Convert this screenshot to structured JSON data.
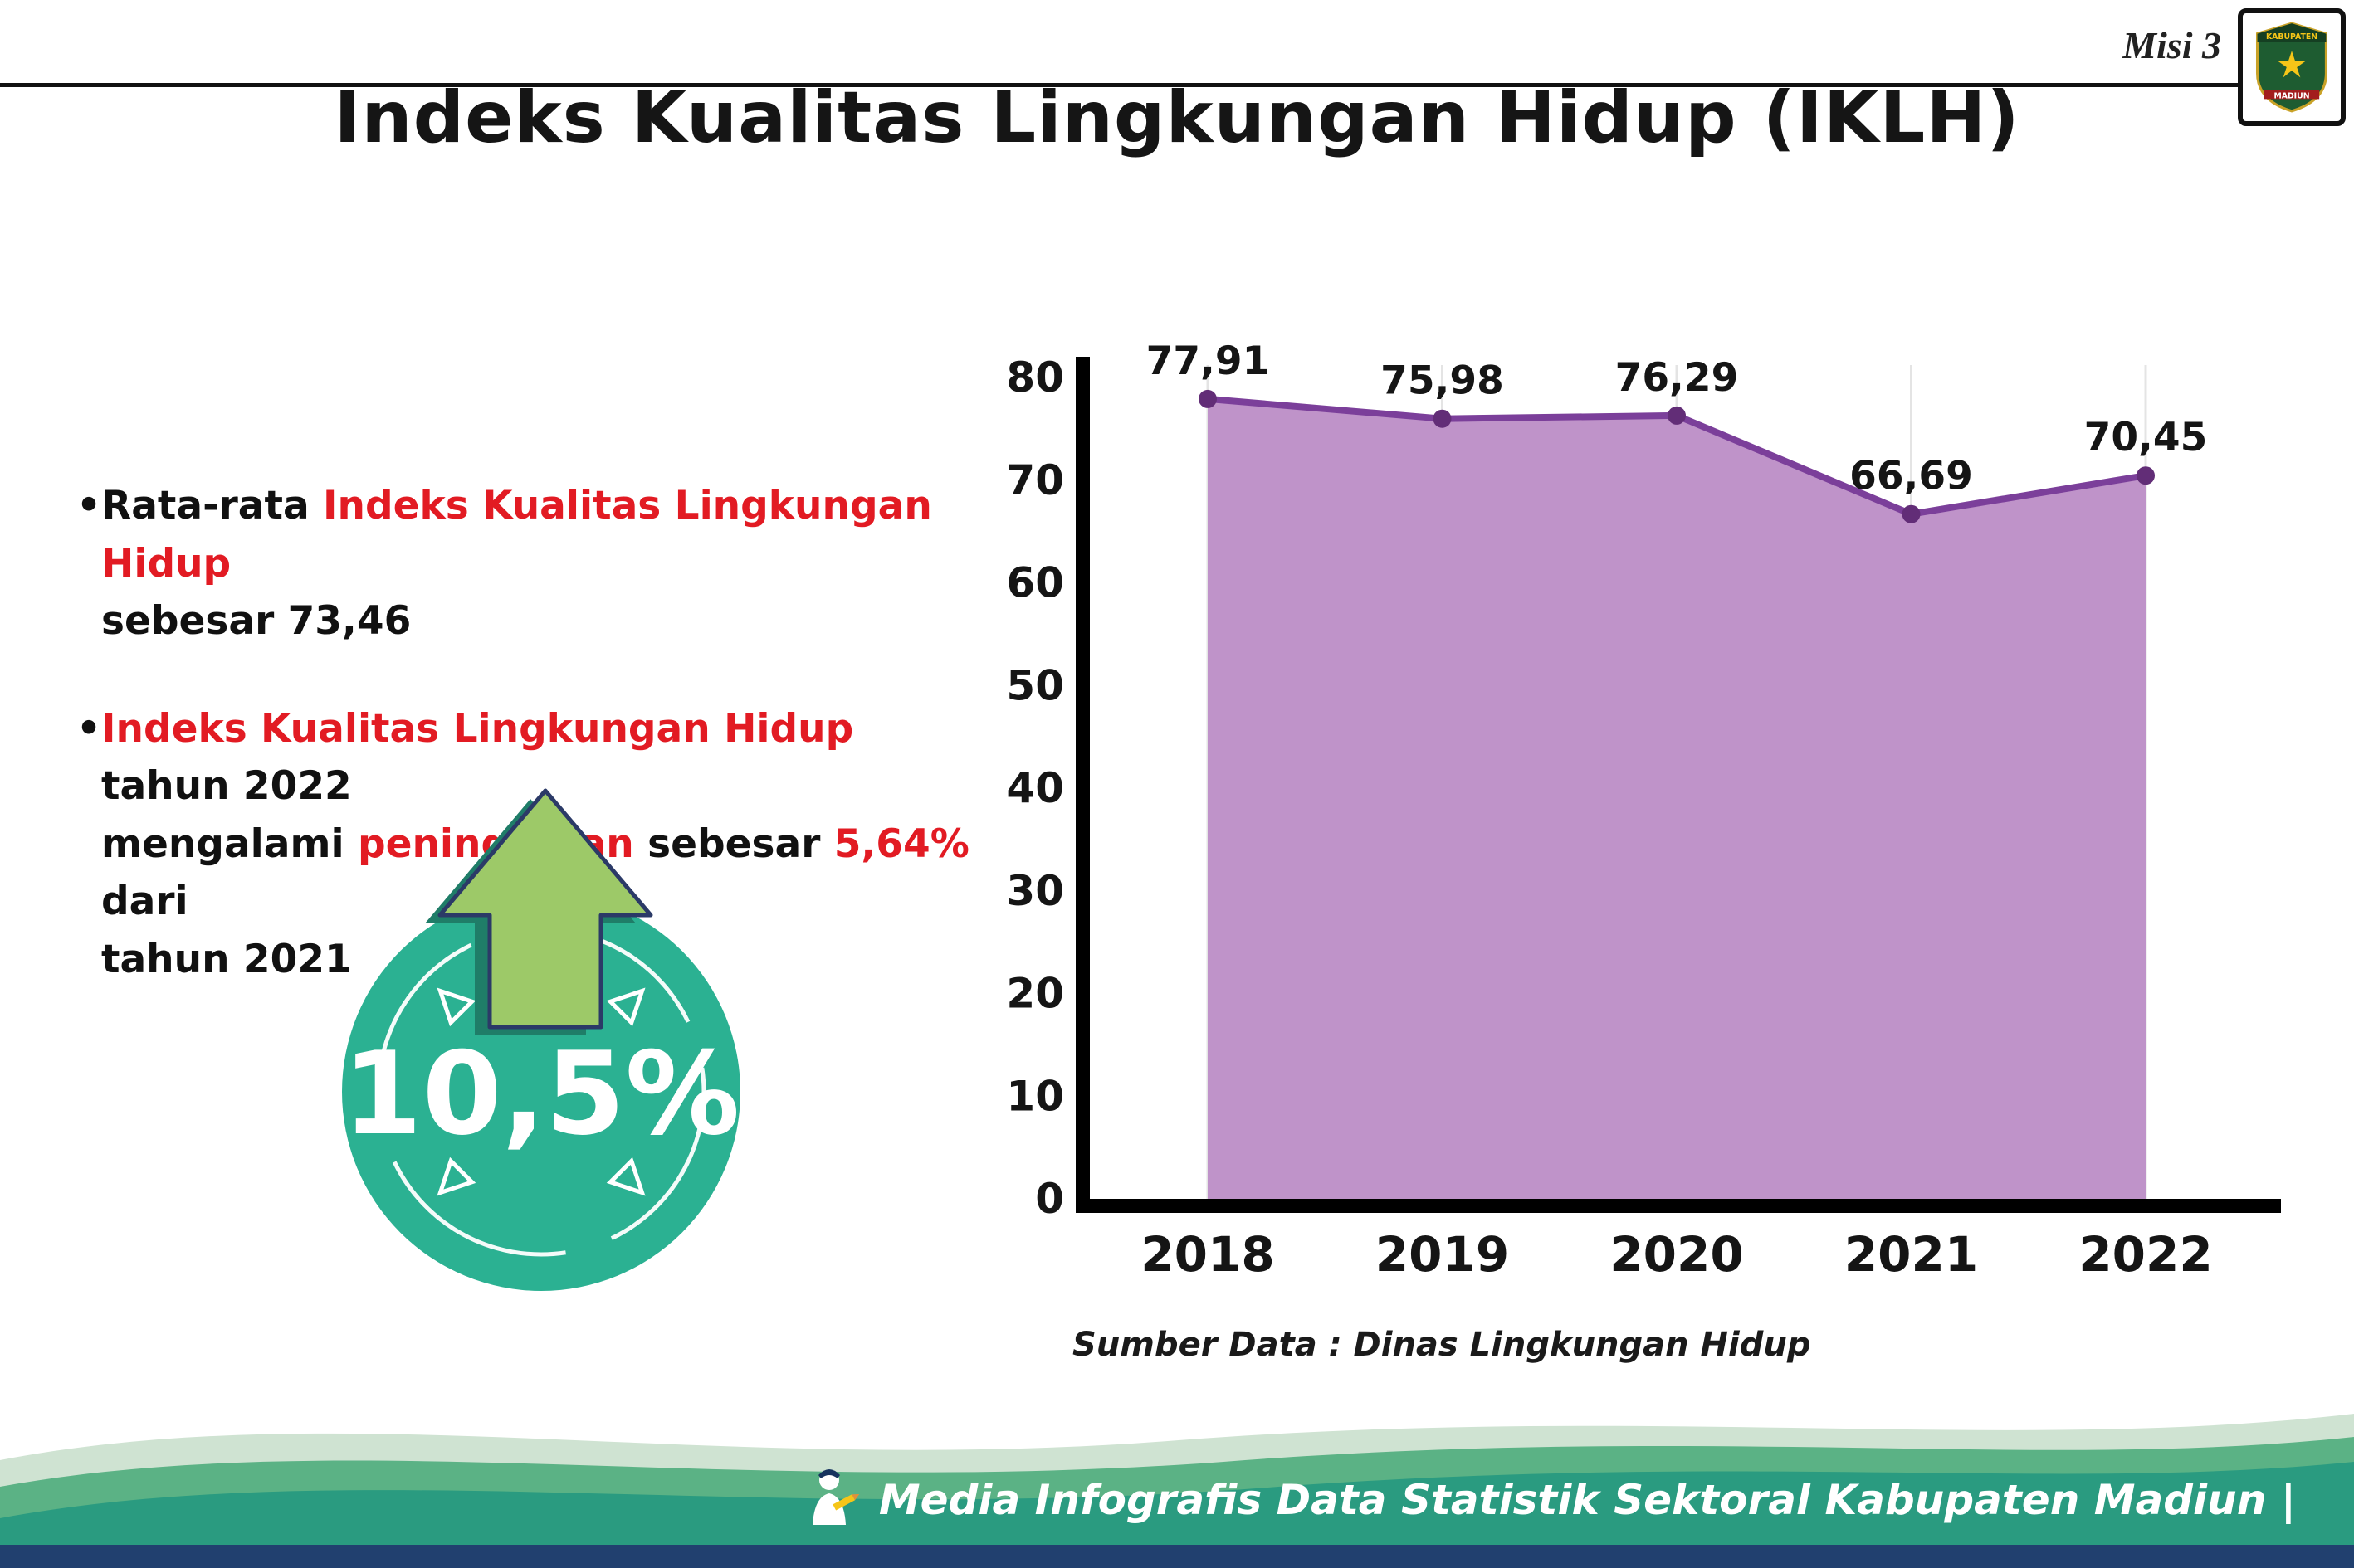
{
  "header": {
    "misi": "Misi 3"
  },
  "logo": {
    "line1": "KABUPATEN",
    "line2": "MADIUN"
  },
  "title": "Indeks Kualitas Lingkungan Hidup (IKLH)",
  "bullets": [
    {
      "lines": [
        {
          "segs": [
            {
              "t": "Rata-rata "
            },
            {
              "t": "Indeks Kualitas Lingkungan Hidup",
              "red": true
            }
          ]
        },
        {
          "segs": [
            {
              "t": "sebesar 73,46"
            }
          ]
        }
      ]
    },
    {
      "lines": [
        {
          "segs": [
            {
              "t": "Indeks Kualitas Lingkungan Hidup",
              "red": true
            },
            {
              "t": " tahun 2022"
            }
          ]
        },
        {
          "segs": [
            {
              "t": "mengalami "
            },
            {
              "t": "peningkatan",
              "red": true
            },
            {
              "t": " sebesar "
            },
            {
              "t": "5,64%",
              "red": true
            },
            {
              "t": " dari"
            }
          ]
        },
        {
          "segs": [
            {
              "t": "tahun 2021"
            }
          ]
        }
      ]
    }
  ],
  "badge": {
    "value": "10,5%"
  },
  "chart_data": {
    "type": "area",
    "title": "Indeks Kualitas Lingkungan Hidup (IKLH)",
    "categories": [
      "2018",
      "2019",
      "2020",
      "2021",
      "2022"
    ],
    "values": [
      77.91,
      75.98,
      76.29,
      66.69,
      70.45
    ],
    "value_labels": [
      "77,91",
      "75,98",
      "76,29",
      "66,69",
      "70,45"
    ],
    "ylim": [
      0,
      80
    ],
    "yticks": [
      0,
      10,
      20,
      30,
      40,
      50,
      60,
      70,
      80
    ],
    "grid": "vertical-light",
    "legend": "none",
    "source": "Sumber Data : Dinas Lingkungan Hidup"
  },
  "source": "Sumber Data : Dinas Lingkungan Hidup",
  "footer": {
    "text": "Media Infografis Data Statistik Sektoral Kabupaten Madiun |"
  },
  "colors": {
    "red": "#e21b23",
    "teal_badge": "#2bb192",
    "arrow_green": "#9dc968",
    "arrow_outline": "#2b3a67",
    "area_fill": "#bf93c9",
    "line": "#7b3f9a",
    "point": "#622d77",
    "grid": "#e4e4e4",
    "footer_light": "#cfe3d2",
    "footer_green": "#5bb285",
    "footer_teal": "#2a9b80",
    "footer_navy": "#21406f"
  }
}
